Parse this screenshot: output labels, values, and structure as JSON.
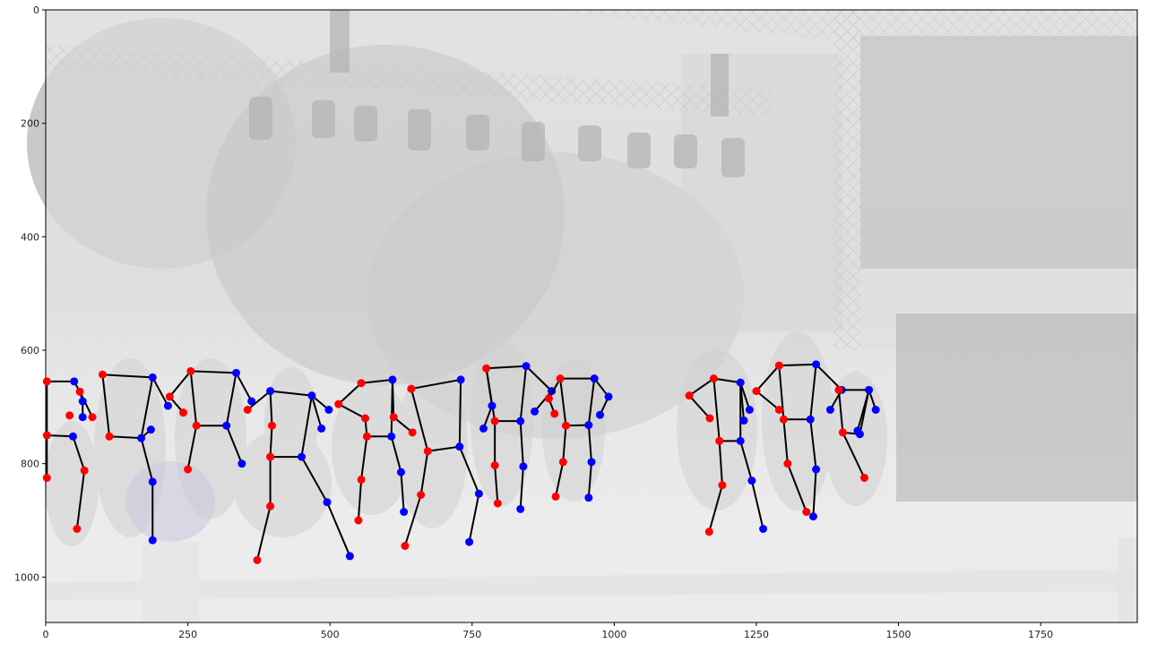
{
  "figure": {
    "description_kind": "matplotlib imshow with pose skeleton overlay",
    "image_extent": {
      "x": [
        0,
        1920
      ],
      "y": [
        0,
        1080
      ]
    },
    "x_ticks": [
      0,
      250,
      500,
      750,
      1000,
      1250,
      1500,
      1750
    ],
    "y_ticks": [
      0,
      200,
      400,
      600,
      800,
      1000
    ],
    "colors": {
      "left_joint": "#ff0000",
      "right_joint": "#0000ff",
      "bone": "#000000",
      "scene_overlay": "#f3f3f3",
      "axes_frame": "#000000"
    }
  },
  "persons": [
    {
      "joints": [
        [
          2,
          655,
          "r"
        ],
        [
          2,
          750,
          "r"
        ],
        [
          2,
          825,
          "r"
        ],
        [
          50,
          655,
          "b"
        ],
        [
          60,
          673,
          "r"
        ],
        [
          65,
          690,
          "b"
        ],
        [
          42,
          715,
          "r"
        ],
        [
          48,
          752,
          "b"
        ],
        [
          68,
          812,
          "r"
        ],
        [
          55,
          915,
          "r"
        ],
        [
          65,
          718,
          "b"
        ],
        [
          82,
          718,
          "r"
        ]
      ],
      "bones": [
        [
          0,
          3
        ],
        [
          0,
          1
        ],
        [
          1,
          7
        ],
        [
          3,
          4
        ],
        [
          4,
          5
        ],
        [
          5,
          10
        ],
        [
          4,
          11
        ],
        [
          1,
          2
        ],
        [
          7,
          8
        ],
        [
          8,
          9
        ]
      ]
    },
    {
      "joints": [
        [
          100,
          643,
          "r"
        ],
        [
          188,
          648,
          "b"
        ],
        [
          112,
          752,
          "r"
        ],
        [
          168,
          755,
          "b"
        ],
        [
          215,
          698,
          "b"
        ],
        [
          185,
          740,
          "b"
        ],
        [
          188,
          832,
          "b"
        ],
        [
          188,
          935,
          "b"
        ]
      ],
      "bones": [
        [
          0,
          1
        ],
        [
          0,
          2
        ],
        [
          1,
          3
        ],
        [
          2,
          3
        ],
        [
          1,
          4
        ],
        [
          3,
          5
        ],
        [
          3,
          6
        ],
        [
          6,
          7
        ]
      ]
    },
    {
      "joints": [
        [
          255,
          637,
          "r"
        ],
        [
          335,
          640,
          "b"
        ],
        [
          218,
          682,
          "r"
        ],
        [
          242,
          710,
          "r"
        ],
        [
          265,
          733,
          "r"
        ],
        [
          318,
          733,
          "b"
        ],
        [
          250,
          810,
          "r"
        ],
        [
          345,
          800,
          "b"
        ],
        [
          362,
          690,
          "b"
        ]
      ],
      "bones": [
        [
          0,
          1
        ],
        [
          0,
          2
        ],
        [
          2,
          3
        ],
        [
          0,
          4
        ],
        [
          4,
          5
        ],
        [
          1,
          5
        ],
        [
          4,
          6
        ],
        [
          5,
          7
        ],
        [
          1,
          8
        ]
      ]
    },
    {
      "joints": [
        [
          395,
          672,
          "b"
        ],
        [
          468,
          680,
          "b"
        ],
        [
          355,
          705,
          "r"
        ],
        [
          398,
          733,
          "r"
        ],
        [
          395,
          788,
          "r"
        ],
        [
          450,
          788,
          "b"
        ],
        [
          395,
          875,
          "r"
        ],
        [
          372,
          970,
          "r"
        ],
        [
          495,
          868,
          "b"
        ],
        [
          535,
          963,
          "b"
        ],
        [
          498,
          705,
          "b"
        ],
        [
          485,
          738,
          "b"
        ]
      ],
      "bones": [
        [
          0,
          1
        ],
        [
          0,
          2
        ],
        [
          0,
          3
        ],
        [
          3,
          4
        ],
        [
          4,
          5
        ],
        [
          5,
          1
        ],
        [
          4,
          6
        ],
        [
          6,
          7
        ],
        [
          5,
          8
        ],
        [
          8,
          9
        ],
        [
          1,
          10
        ],
        [
          1,
          11
        ]
      ]
    },
    {
      "joints": [
        [
          555,
          658,
          "r"
        ],
        [
          610,
          652,
          "b"
        ],
        [
          515,
          695,
          "r"
        ],
        [
          562,
          720,
          "r"
        ],
        [
          565,
          752,
          "r"
        ],
        [
          608,
          752,
          "b"
        ],
        [
          555,
          828,
          "r"
        ],
        [
          550,
          900,
          "r"
        ],
        [
          625,
          815,
          "b"
        ],
        [
          630,
          885,
          "b"
        ],
        [
          612,
          718,
          "r"
        ],
        [
          645,
          745,
          "r"
        ]
      ],
      "bones": [
        [
          0,
          1
        ],
        [
          0,
          2
        ],
        [
          2,
          3
        ],
        [
          3,
          4
        ],
        [
          4,
          5
        ],
        [
          5,
          1
        ],
        [
          4,
          6
        ],
        [
          6,
          7
        ],
        [
          5,
          8
        ],
        [
          8,
          9
        ],
        [
          1,
          10
        ],
        [
          10,
          11
        ]
      ]
    },
    {
      "joints": [
        [
          643,
          668,
          "r"
        ],
        [
          730,
          652,
          "b"
        ],
        [
          672,
          778,
          "r"
        ],
        [
          728,
          770,
          "b"
        ],
        [
          660,
          855,
          "r"
        ],
        [
          632,
          945,
          "r"
        ],
        [
          762,
          853,
          "b"
        ],
        [
          745,
          938,
          "b"
        ]
      ],
      "bones": [
        [
          0,
          1
        ],
        [
          0,
          2
        ],
        [
          1,
          3
        ],
        [
          2,
          3
        ],
        [
          2,
          4
        ],
        [
          4,
          5
        ],
        [
          3,
          6
        ],
        [
          6,
          7
        ]
      ]
    },
    {
      "joints": [
        [
          775,
          632,
          "r"
        ],
        [
          845,
          628,
          "b"
        ],
        [
          790,
          725,
          "r"
        ],
        [
          835,
          725,
          "b"
        ],
        [
          790,
          803,
          "r"
        ],
        [
          795,
          870,
          "r"
        ],
        [
          840,
          805,
          "b"
        ],
        [
          835,
          880,
          "b"
        ],
        [
          785,
          698,
          "b"
        ],
        [
          770,
          738,
          "b"
        ],
        [
          890,
          672,
          "b"
        ],
        [
          860,
          708,
          "b"
        ]
      ],
      "bones": [
        [
          0,
          1
        ],
        [
          0,
          2
        ],
        [
          2,
          3
        ],
        [
          1,
          3
        ],
        [
          2,
          4
        ],
        [
          4,
          5
        ],
        [
          3,
          6
        ],
        [
          6,
          7
        ],
        [
          0,
          8
        ],
        [
          8,
          9
        ],
        [
          1,
          10
        ],
        [
          10,
          11
        ]
      ]
    },
    {
      "joints": [
        [
          905,
          650,
          "r"
        ],
        [
          965,
          650,
          "b"
        ],
        [
          885,
          685,
          "r"
        ],
        [
          895,
          712,
          "r"
        ],
        [
          915,
          733,
          "r"
        ],
        [
          955,
          732,
          "b"
        ],
        [
          910,
          797,
          "r"
        ],
        [
          897,
          858,
          "r"
        ],
        [
          960,
          797,
          "b"
        ],
        [
          955,
          860,
          "b"
        ],
        [
          990,
          682,
          "b"
        ],
        [
          975,
          714,
          "b"
        ]
      ],
      "bones": [
        [
          0,
          1
        ],
        [
          0,
          2
        ],
        [
          2,
          3
        ],
        [
          0,
          4
        ],
        [
          4,
          5
        ],
        [
          5,
          1
        ],
        [
          4,
          6
        ],
        [
          6,
          7
        ],
        [
          5,
          8
        ],
        [
          8,
          9
        ],
        [
          1,
          10
        ],
        [
          10,
          11
        ]
      ]
    },
    {
      "joints": [
        [
          1175,
          650,
          "r"
        ],
        [
          1222,
          657,
          "b"
        ],
        [
          1132,
          680,
          "r"
        ],
        [
          1168,
          720,
          "r"
        ],
        [
          1185,
          760,
          "r"
        ],
        [
          1222,
          760,
          "b"
        ],
        [
          1190,
          838,
          "r"
        ],
        [
          1167,
          920,
          "r"
        ],
        [
          1242,
          830,
          "b"
        ],
        [
          1262,
          915,
          "b"
        ],
        [
          1238,
          705,
          "b"
        ],
        [
          1228,
          724,
          "b"
        ]
      ],
      "bones": [
        [
          0,
          1
        ],
        [
          0,
          2
        ],
        [
          2,
          3
        ],
        [
          0,
          4
        ],
        [
          4,
          5
        ],
        [
          5,
          1
        ],
        [
          4,
          6
        ],
        [
          6,
          7
        ],
        [
          5,
          8
        ],
        [
          8,
          9
        ],
        [
          1,
          10
        ],
        [
          1,
          11
        ]
      ]
    },
    {
      "joints": [
        [
          1290,
          627,
          "r"
        ],
        [
          1355,
          625,
          "b"
        ],
        [
          1250,
          672,
          "r"
        ],
        [
          1290,
          705,
          "r"
        ],
        [
          1298,
          722,
          "r"
        ],
        [
          1345,
          722,
          "b"
        ],
        [
          1305,
          800,
          "r"
        ],
        [
          1338,
          885,
          "r"
        ],
        [
          1355,
          810,
          "b"
        ],
        [
          1350,
          893,
          "b"
        ],
        [
          1400,
          670,
          "b"
        ],
        [
          1380,
          705,
          "b"
        ]
      ],
      "bones": [
        [
          0,
          1
        ],
        [
          0,
          2
        ],
        [
          2,
          3
        ],
        [
          0,
          4
        ],
        [
          4,
          5
        ],
        [
          5,
          1
        ],
        [
          4,
          6
        ],
        [
          6,
          7
        ],
        [
          5,
          8
        ],
        [
          8,
          9
        ],
        [
          1,
          10
        ],
        [
          10,
          11
        ]
      ]
    },
    {
      "joints": [
        [
          1395,
          670,
          "r"
        ],
        [
          1448,
          670,
          "b"
        ],
        [
          1402,
          745,
          "r"
        ],
        [
          1432,
          748,
          "b"
        ],
        [
          1440,
          825,
          "r"
        ],
        [
          1460,
          705,
          "b"
        ],
        [
          1428,
          742,
          "b"
        ]
      ],
      "bones": [
        [
          0,
          1
        ],
        [
          0,
          2
        ],
        [
          2,
          3
        ],
        [
          1,
          3
        ],
        [
          2,
          4
        ],
        [
          1,
          5
        ],
        [
          1,
          6
        ]
      ]
    }
  ]
}
